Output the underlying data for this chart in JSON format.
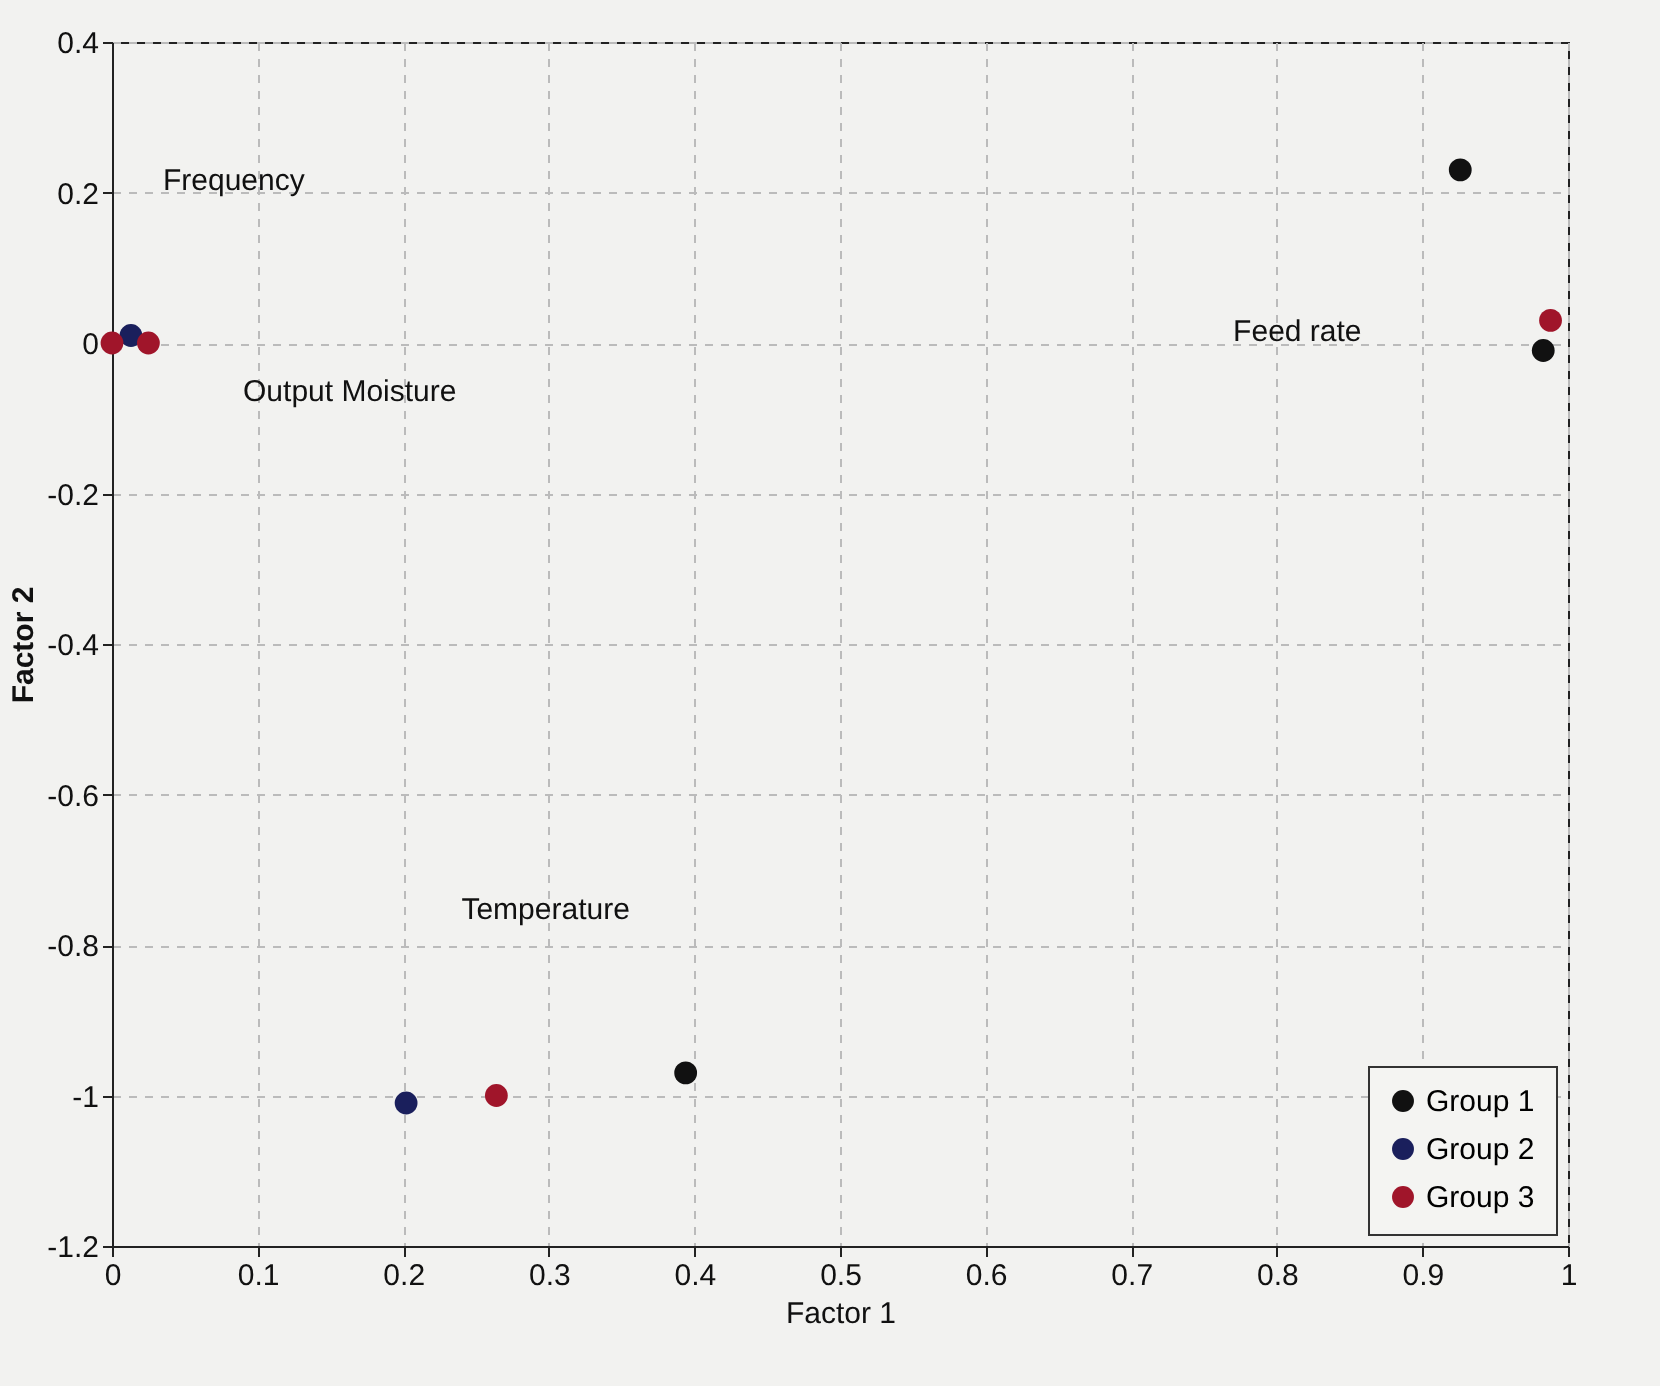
{
  "chart_data": {
    "type": "scatter",
    "xlabel": "Factor 1",
    "ylabel": "Factor 2",
    "xlim": [
      0,
      1
    ],
    "ylim": [
      -1.2,
      0.4
    ],
    "xticks": [
      0,
      0.1,
      0.2,
      0.3,
      0.4,
      0.5,
      0.6,
      0.7,
      0.8,
      0.9,
      1
    ],
    "yticks": [
      -1.2,
      -1,
      -0.8,
      -0.6,
      -0.4,
      -0.2,
      0,
      0.2,
      0.4
    ],
    "grid": true,
    "legend": "bottom right",
    "marker": "circle",
    "series": [
      {
        "name": "Group 1",
        "color": "#111111",
        "x": [
          0.926,
          0.983,
          0.394
        ],
        "values": [
          0.23,
          -0.01,
          -0.97
        ]
      },
      {
        "name": "Group 2",
        "color": "#1a1f5c",
        "x": [
          0.013,
          0.202
        ],
        "values": [
          0.01,
          -1.01
        ]
      },
      {
        "name": "Group 3",
        "color": "#a0152a",
        "x": [
          0.0,
          0.025,
          0.988,
          0.264
        ],
        "values": [
          0.0,
          0.0,
          0.03,
          -1.0
        ]
      }
    ],
    "annotations": [
      "Frequency",
      "Feed rate",
      "Output Moisture",
      "Temperature"
    ]
  }
}
